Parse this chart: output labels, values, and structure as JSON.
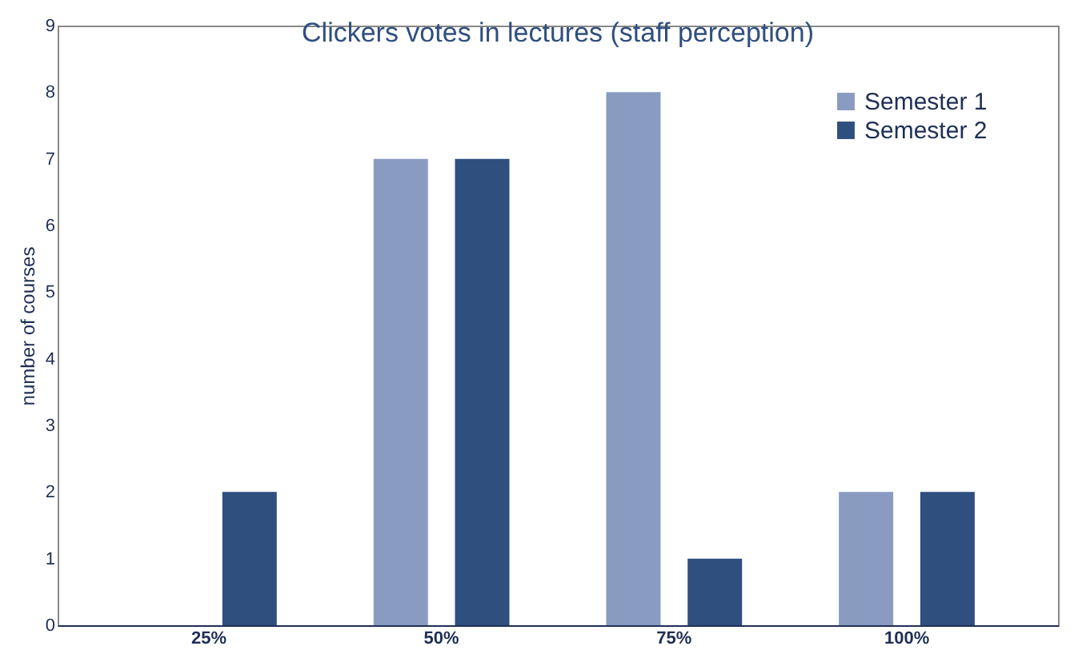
{
  "chart_data": {
    "type": "bar",
    "title": "Clickers votes in lectures (staff perception)",
    "ylabel": "number of courses",
    "categories": [
      "25%",
      "50%",
      "75%",
      "100%"
    ],
    "series": [
      {
        "name": "Semester  1",
        "color": "#8a9bc2",
        "values": [
          0,
          7,
          8,
          2
        ]
      },
      {
        "name": "Semester 2",
        "color": "#2f4f7f",
        "values": [
          2,
          7,
          1,
          2
        ]
      }
    ],
    "ylim": [
      0,
      9
    ],
    "yticks": [
      0,
      1,
      2,
      3,
      4,
      5,
      6,
      7,
      8,
      9
    ],
    "grid": false,
    "legend": "top right"
  }
}
